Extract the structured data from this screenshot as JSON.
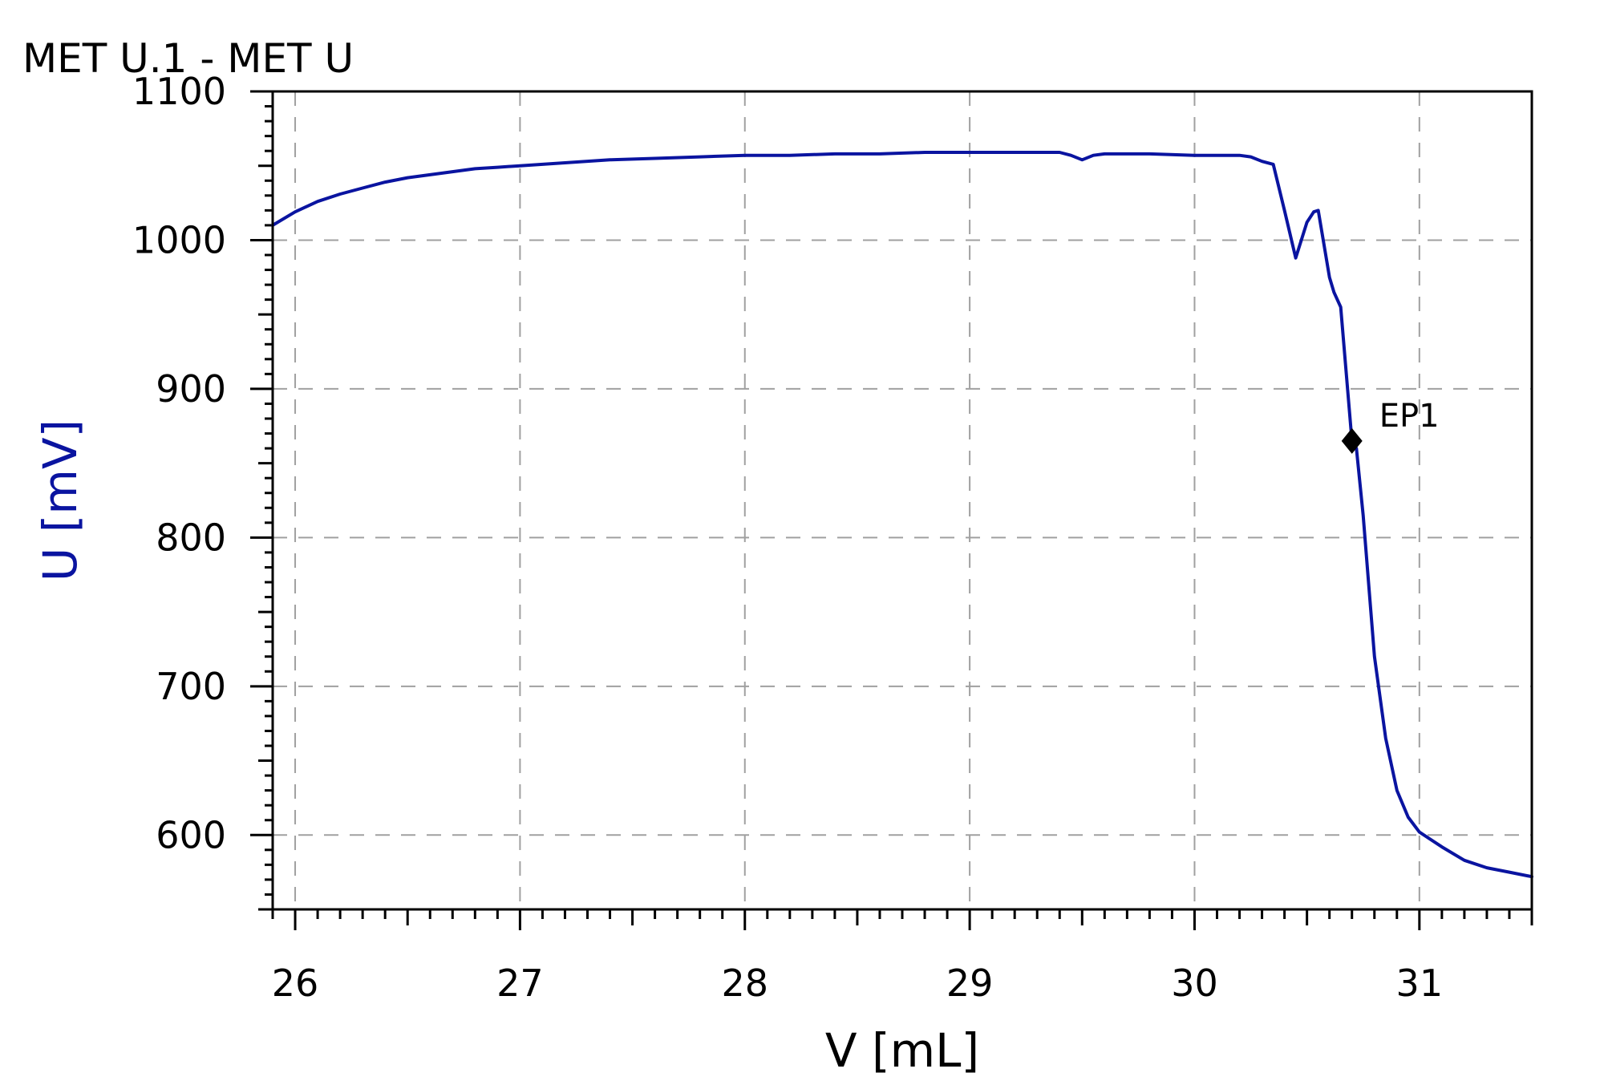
{
  "chart_data": {
    "type": "line",
    "title": "MET U.1 - MET U",
    "xlabel": "V [mL]",
    "ylabel": "U [mV]",
    "xlim": [
      25.9,
      31.5
    ],
    "ylim": [
      550,
      1100
    ],
    "x_ticks": [
      "26",
      "27",
      "28",
      "29",
      "30",
      "31"
    ],
    "y_ticks": [
      "600",
      "700",
      "800",
      "900",
      "1000",
      "1100"
    ],
    "grid": true,
    "colors": {
      "series": "#0a14a0",
      "axis": "#000000",
      "grid": "#a0a0a0",
      "ylabel": "#0a14a0"
    },
    "series": [
      {
        "x": [
          25.9,
          26.0,
          26.1,
          26.2,
          26.3,
          26.4,
          26.5,
          26.6,
          26.7,
          26.8,
          26.9,
          27.0,
          27.2,
          27.4,
          27.6,
          27.8,
          28.0,
          28.2,
          28.4,
          28.6,
          28.8,
          29.0,
          29.2,
          29.4,
          29.45,
          29.5,
          29.55,
          29.6,
          29.8,
          30.0,
          30.1,
          30.2,
          30.25,
          30.3,
          30.35,
          30.4,
          30.45,
          30.5,
          30.53,
          30.55,
          30.6,
          30.62,
          30.65,
          30.7,
          30.72,
          30.75,
          30.8,
          30.85,
          30.9,
          30.95,
          31.0,
          31.1,
          31.2,
          31.3,
          31.4,
          31.5
        ],
        "y": [
          1010,
          1019,
          1026,
          1031,
          1035,
          1039,
          1042,
          1044,
          1046,
          1048,
          1049,
          1050,
          1052,
          1054,
          1055,
          1056,
          1057,
          1057,
          1058,
          1058,
          1059,
          1059,
          1059,
          1059,
          1057,
          1054,
          1057,
          1058,
          1058,
          1057,
          1057,
          1057,
          1056,
          1053,
          1051,
          1020,
          988,
          1012,
          1019,
          1020,
          975,
          965,
          955,
          865,
          860,
          815,
          720,
          665,
          630,
          612,
          602,
          592,
          583,
          578,
          575,
          572
        ]
      }
    ],
    "annotations": [
      {
        "label": "EP1",
        "x": 30.7,
        "y": 865
      }
    ]
  }
}
